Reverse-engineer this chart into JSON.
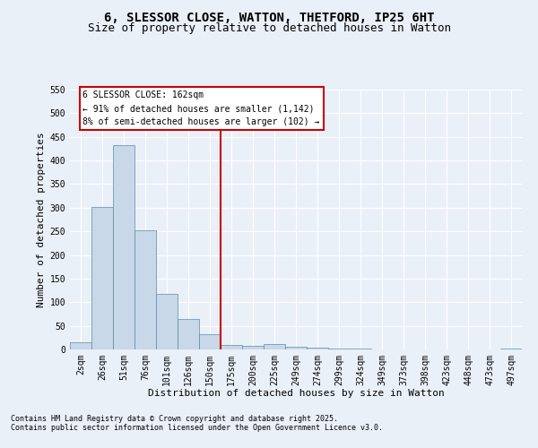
{
  "title1": "6, SLESSOR CLOSE, WATTON, THETFORD, IP25 6HT",
  "title2": "Size of property relative to detached houses in Watton",
  "xlabel": "Distribution of detached houses by size in Watton",
  "ylabel": "Number of detached properties",
  "footnote1": "Contains HM Land Registry data © Crown copyright and database right 2025.",
  "footnote2": "Contains public sector information licensed under the Open Government Licence v3.0.",
  "categories": [
    "2sqm",
    "26sqm",
    "51sqm",
    "76sqm",
    "101sqm",
    "126sqm",
    "150sqm",
    "175sqm",
    "200sqm",
    "225sqm",
    "249sqm",
    "274sqm",
    "299sqm",
    "324sqm",
    "349sqm",
    "373sqm",
    "398sqm",
    "423sqm",
    "448sqm",
    "473sqm",
    "497sqm"
  ],
  "values": [
    15,
    302,
    432,
    253,
    117,
    65,
    32,
    10,
    7,
    11,
    6,
    4,
    2,
    1,
    0,
    0,
    0,
    0,
    0,
    0,
    2
  ],
  "bar_color": "#c8d8e8",
  "bar_edge_color": "#5a8ab0",
  "red_line_index": 6.5,
  "annotation_title": "6 SLESSOR CLOSE: 162sqm",
  "annotation_line1": "← 91% of detached houses are smaller (1,142)",
  "annotation_line2": "8% of semi-detached houses are larger (102) →",
  "ylim": [
    0,
    550
  ],
  "yticks": [
    0,
    50,
    100,
    150,
    200,
    250,
    300,
    350,
    400,
    450,
    500,
    550
  ],
  "background_color": "#eaf0f8",
  "annotation_box_color": "#ffffff",
  "annotation_box_edge": "#cc0000",
  "grid_color": "#ffffff",
  "title_fontsize": 10,
  "subtitle_fontsize": 9,
  "axis_label_fontsize": 8,
  "tick_fontsize": 7,
  "annotation_fontsize": 7,
  "footnote_fontsize": 6
}
